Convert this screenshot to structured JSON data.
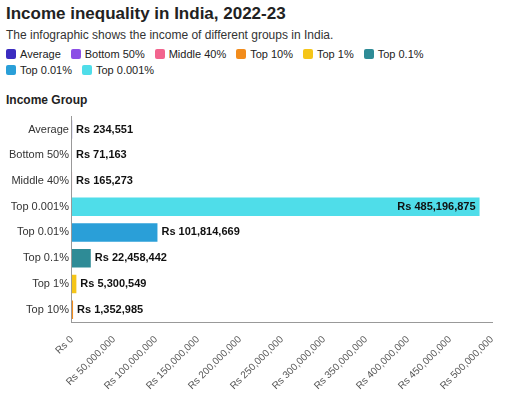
{
  "chart_data": {
    "type": "bar",
    "orientation": "horizontal",
    "title": "Income inequality in India, 2022-23",
    "subtitle": "The infographic shows the income of different groups in India.",
    "y_label": "Income Group",
    "categories": [
      "Average",
      "Bottom 50%",
      "Middle 40%",
      "Top 0.001%",
      "Top 0.01%",
      "Top 0.1%",
      "Top 1%",
      "Top 10%"
    ],
    "series": [
      {
        "name": "Average",
        "color": "#3b2cc0",
        "values": [
          234551,
          null,
          null,
          null,
          null,
          null,
          null,
          null
        ],
        "value_labels": [
          "Rs 234,551",
          null,
          null,
          null,
          null,
          null,
          null,
          null
        ]
      },
      {
        "name": "Bottom 50%",
        "color": "#8c4fe6",
        "values": [
          null,
          71163,
          null,
          null,
          null,
          null,
          null,
          null
        ],
        "value_labels": [
          null,
          "Rs 71,163",
          null,
          null,
          null,
          null,
          null,
          null
        ]
      },
      {
        "name": "Middle 40%",
        "color": "#f2648e",
        "values": [
          null,
          null,
          165273,
          null,
          null,
          null,
          null,
          null
        ],
        "value_labels": [
          null,
          null,
          "Rs 165,273",
          null,
          null,
          null,
          null,
          null
        ]
      },
      {
        "name": "Top 10%",
        "color": "#f28c1c",
        "values": [
          null,
          null,
          null,
          null,
          null,
          null,
          null,
          1352985
        ],
        "value_labels": [
          null,
          null,
          null,
          null,
          null,
          null,
          null,
          "Rs 1,352,985"
        ]
      },
      {
        "name": "Top 1%",
        "color": "#f5c518",
        "values": [
          null,
          null,
          null,
          null,
          null,
          null,
          5300549,
          null
        ],
        "value_labels": [
          null,
          null,
          null,
          null,
          null,
          null,
          "Rs 5,300,549",
          null
        ]
      },
      {
        "name": "Top 0.1%",
        "color": "#2e8b96",
        "values": [
          null,
          null,
          null,
          null,
          null,
          22458442,
          null,
          null
        ],
        "value_labels": [
          null,
          null,
          null,
          null,
          null,
          "Rs 22,458,442",
          null,
          null
        ]
      },
      {
        "name": "Top 0.01%",
        "color": "#2a9fd8",
        "values": [
          null,
          null,
          null,
          null,
          101814669,
          null,
          null,
          null
        ],
        "value_labels": [
          null,
          null,
          null,
          null,
          "Rs 101,814,669",
          null,
          null,
          null
        ]
      },
      {
        "name": "Top 0.001%",
        "color": "#4fdde9",
        "values": [
          null,
          null,
          null,
          485196875,
          null,
          null,
          null,
          null
        ],
        "value_labels": [
          null,
          null,
          null,
          "Rs 485,196,875",
          null,
          null,
          null,
          null
        ]
      }
    ],
    "xlim": [
      0,
      500000000
    ],
    "xticks": [
      {
        "value": 0,
        "label": "Rs 0"
      },
      {
        "value": 50000000,
        "label": "Rs 50,000,000"
      },
      {
        "value": 100000000,
        "label": "Rs 100,000,000"
      },
      {
        "value": 150000000,
        "label": "Rs 150,000,000"
      },
      {
        "value": 200000000,
        "label": "Rs 200,000,000"
      },
      {
        "value": 250000000,
        "label": "Rs 250,000,000"
      },
      {
        "value": 300000000,
        "label": "Rs 300,000,000"
      },
      {
        "value": 350000000,
        "label": "Rs 350,000,000"
      },
      {
        "value": 400000000,
        "label": "Rs 400,000,000"
      },
      {
        "value": 450000000,
        "label": "Rs 450,000,000"
      },
      {
        "value": 500000000,
        "label": "Rs 500,000,000"
      }
    ],
    "grid": false,
    "legend": "top-left",
    "data_labels": true
  }
}
